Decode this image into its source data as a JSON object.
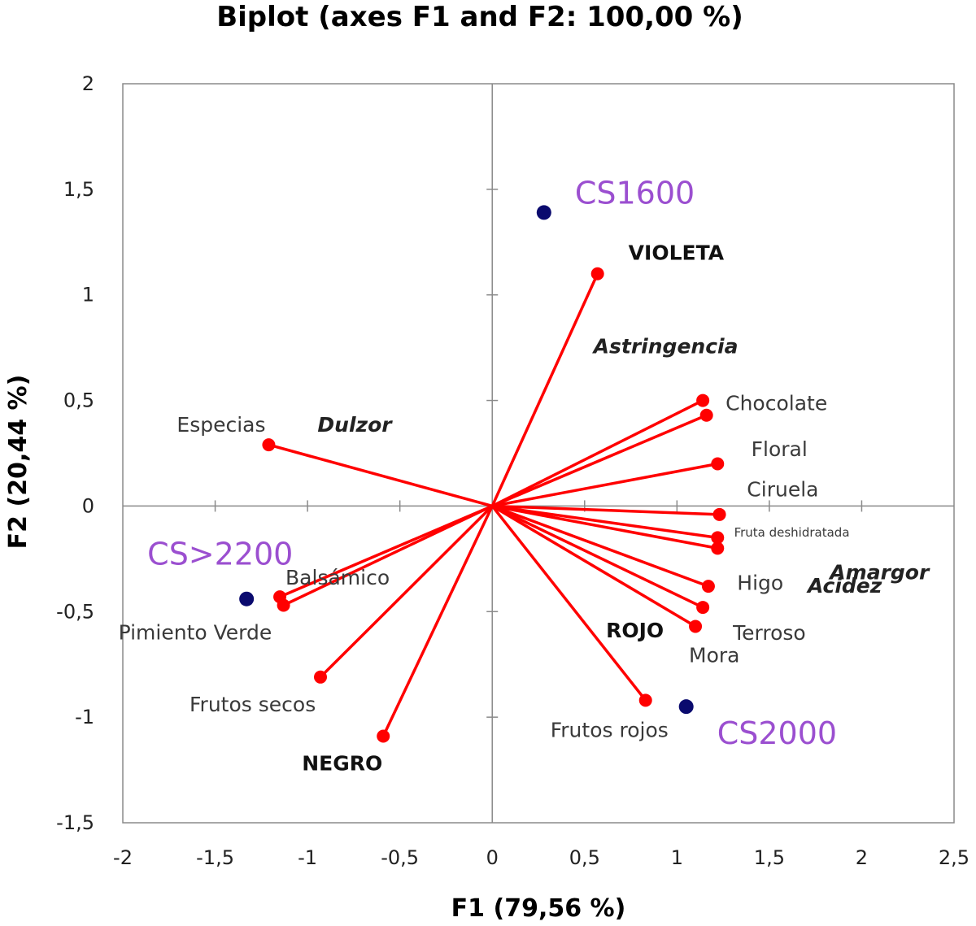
{
  "chart_data": {
    "type": "scatter",
    "title": "Biplot (axes F1 and F2: 100,00 %)",
    "xlabel": "F1 (79,56 %)",
    "ylabel": "F2 (20,44 %)",
    "xlim": [
      -2,
      2.5
    ],
    "ylim": [
      -1.5,
      2
    ],
    "xticks": [
      -2,
      -1.5,
      -1,
      -0.5,
      0,
      0.5,
      1,
      1.5,
      2,
      2.5
    ],
    "xtick_labels": [
      "-2",
      "-1,5",
      "-1",
      "-0,5",
      "0",
      "0,5",
      "1",
      "1,5",
      "2",
      "2,5"
    ],
    "yticks": [
      -1.5,
      -1,
      -0.5,
      0,
      0.5,
      1,
      1.5,
      2
    ],
    "ytick_labels": [
      "-1,5",
      "-1",
      "-0,5",
      "0",
      "0,5",
      "1",
      "1,5",
      "2"
    ],
    "grid": false,
    "colors": {
      "variables": "#ff0000",
      "observations": "#0a0a6e",
      "observation_labels": "#9b4fd0"
    },
    "variables": [
      {
        "name": "VIOLETA",
        "x": 0.57,
        "y": 1.1,
        "style": "bold"
      },
      {
        "name": "Astringencia",
        "x": 0.57,
        "y": 1.1,
        "style": "bolditalic"
      },
      {
        "name": "Chocolate",
        "x": 1.14,
        "y": 0.5,
        "style": "normal"
      },
      {
        "name": "Floral",
        "x": 1.16,
        "y": 0.43,
        "style": "normal"
      },
      {
        "name": "Ciruela",
        "x": 1.22,
        "y": 0.2,
        "style": "normal"
      },
      {
        "name": "Fruta deshidratada",
        "x": 1.23,
        "y": -0.04,
        "style": "small"
      },
      {
        "name": "Amargor",
        "x": 1.22,
        "y": -0.15,
        "style": "bolditalic"
      },
      {
        "name": "Higo",
        "x": 1.22,
        "y": -0.2,
        "style": "normal"
      },
      {
        "name": "Acidez",
        "x": 1.17,
        "y": -0.38,
        "style": "bolditalic"
      },
      {
        "name": "Terroso",
        "x": 1.14,
        "y": -0.48,
        "style": "normal"
      },
      {
        "name": "Mora",
        "x": 1.1,
        "y": -0.57,
        "style": "normal"
      },
      {
        "name": "ROJO",
        "x": 1.14,
        "y": -0.48,
        "style": "bold"
      },
      {
        "name": "Frutos rojos",
        "x": 0.83,
        "y": -0.92,
        "style": "normal"
      },
      {
        "name": "NEGRO",
        "x": -0.59,
        "y": -1.09,
        "style": "bold"
      },
      {
        "name": "Frutos secos",
        "x": -0.93,
        "y": -0.81,
        "style": "normal"
      },
      {
        "name": "Balsámico",
        "x": -1.15,
        "y": -0.43,
        "style": "normal"
      },
      {
        "name": "Pimiento Verde",
        "x": -1.13,
        "y": -0.47,
        "style": "normal"
      },
      {
        "name": "Especias",
        "x": -1.21,
        "y": 0.29,
        "style": "normal"
      },
      {
        "name": "Dulzor",
        "x": -1.21,
        "y": 0.29,
        "style": "bolditalic"
      }
    ],
    "observations": [
      {
        "name": "CS1600",
        "x": 0.28,
        "y": 1.39
      },
      {
        "name": "CS2000",
        "x": 1.05,
        "y": -0.95
      },
      {
        "name": "CS>2200",
        "x": -1.33,
        "y": -0.44
      }
    ]
  }
}
